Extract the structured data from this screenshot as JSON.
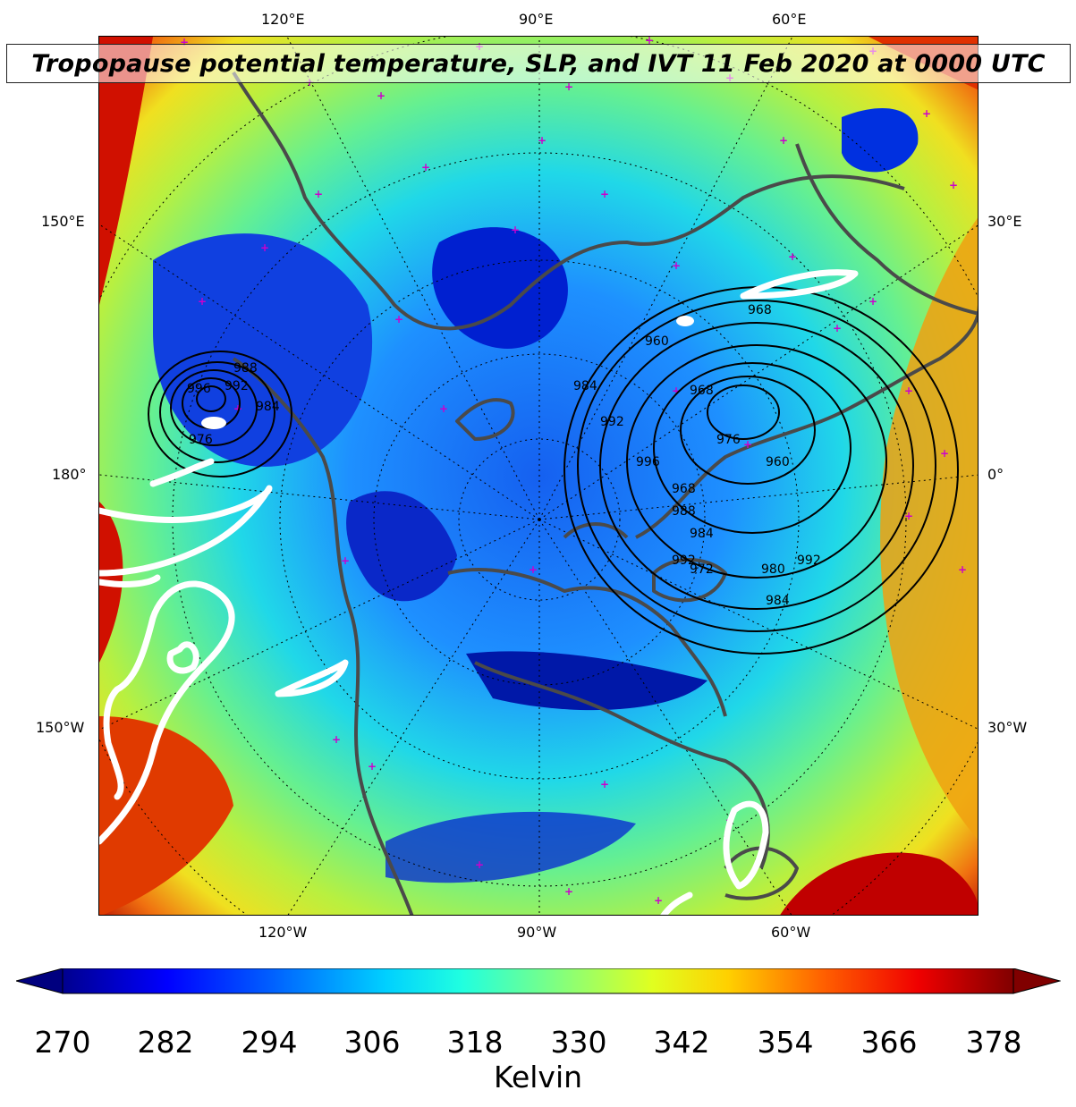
{
  "title": "Tropopause potential temperature, SLP, and IVT 11 Feb 2020 at 0000 UTC",
  "map": {
    "projection": "north polar stereographic",
    "fill_field": "tropopause potential temperature",
    "contour_field": "sea level pressure",
    "ivt_outline_color": "#ffffff",
    "slp_contour_color": "#000000",
    "coastline_color": "#505050",
    "marker_color": "#cc00cc",
    "longitude_labels": {
      "top": [
        "120°E",
        "90°E",
        "60°E"
      ],
      "bottom": [
        "120°W",
        "90°W",
        "60°W"
      ],
      "left": [
        "150°E",
        "180°",
        "150°W"
      ],
      "right": [
        "30°E",
        "0°",
        "30°W"
      ]
    },
    "slp_labels": [
      "988",
      "996",
      "992",
      "984",
      "976",
      "968",
      "960",
      "968",
      "976",
      "984",
      "992",
      "996",
      "968",
      "988",
      "984",
      "992",
      "972",
      "980",
      "984",
      "992",
      "960"
    ]
  },
  "colorbar": {
    "label": "Kelvin",
    "ticks": [
      "270",
      "282",
      "294",
      "306",
      "318",
      "330",
      "342",
      "354",
      "366",
      "378"
    ],
    "min": 270,
    "max": 381,
    "extend": "both",
    "colormap": "jet"
  }
}
